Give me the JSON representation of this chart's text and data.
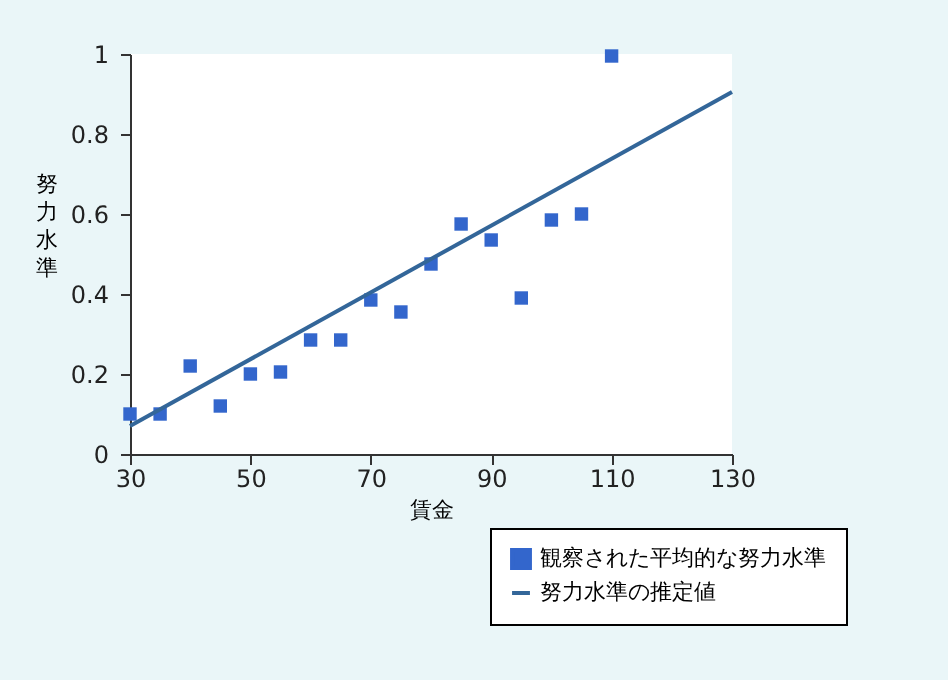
{
  "chart_data": {
    "type": "scatter",
    "xlabel": "賃金",
    "ylabel": "努力水準",
    "xlim": [
      30,
      130
    ],
    "xticks": [
      30,
      50,
      70,
      90,
      110,
      130
    ],
    "ylim": [
      0,
      1
    ],
    "yticks": [
      0,
      0.2,
      0.4,
      0.6,
      0.8,
      1
    ],
    "grid": false,
    "legend": "bottom right",
    "marker": "square",
    "series": [
      {
        "name": "観察された平均的な努力水準",
        "color": "#3366cc",
        "x": [
          30,
          35,
          40,
          45,
          50,
          55,
          60,
          65,
          70,
          75,
          80,
          85,
          90,
          95,
          100,
          105,
          110
        ],
        "values": [
          0.1,
          0.1,
          0.22,
          0.12,
          0.2,
          0.205,
          0.285,
          0.285,
          0.385,
          0.355,
          0.475,
          0.575,
          0.535,
          0.39,
          0.585,
          0.6,
          0.995
        ]
      },
      {
        "name": "努力水準の推定値",
        "type": "line",
        "color": "#336699",
        "x": [
          30,
          130
        ],
        "values": [
          0.07,
          0.905
        ],
        "line_style": "solid",
        "marker": "none"
      }
    ]
  }
}
